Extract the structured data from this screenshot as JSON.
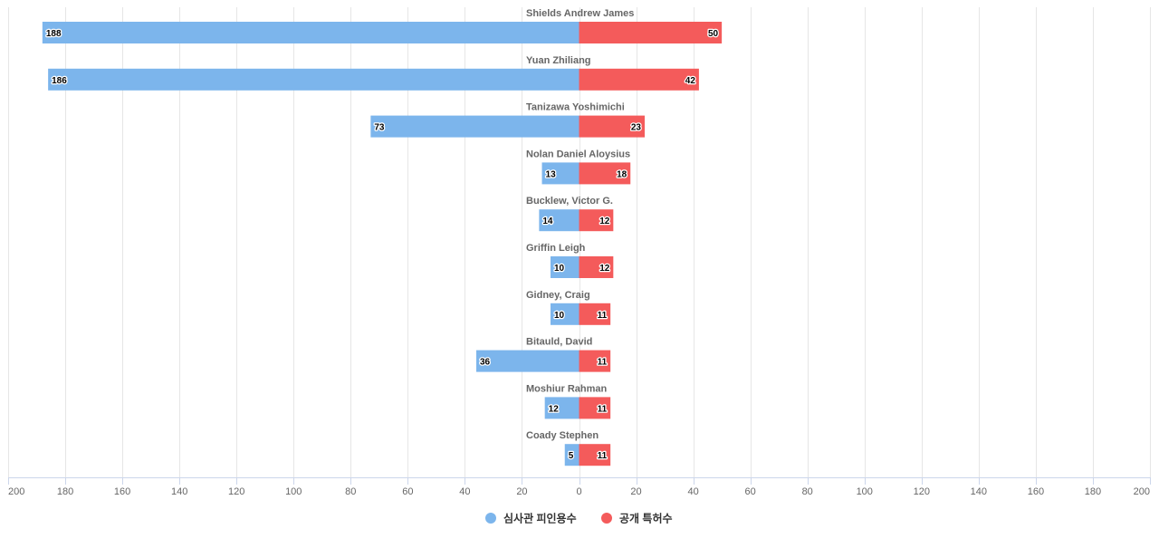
{
  "chart_data": {
    "type": "bar",
    "orientation": "horizontal-diverging",
    "categories": [
      "Shields Andrew James",
      "Yuan Zhiliang",
      "Tanizawa Yoshimichi",
      "Nolan Daniel Aloysius",
      "Bucklew, Victor G.",
      "Griffin Leigh",
      "Gidney, Craig",
      "Bitauld, David",
      "Moshiur Rahman",
      "Coady Stephen"
    ],
    "series": [
      {
        "name": "심사관 피인용수",
        "side": "left",
        "color": "#7cb5ec",
        "values": [
          188,
          186,
          73,
          13,
          14,
          10,
          10,
          36,
          12,
          5
        ]
      },
      {
        "name": "공개 특허수",
        "side": "right",
        "color": "#f45b5b",
        "values": [
          50,
          42,
          23,
          18,
          12,
          12,
          11,
          11,
          11,
          11
        ]
      }
    ],
    "xlim": [
      -200,
      200
    ],
    "ticks": [
      "200",
      "180",
      "160",
      "140",
      "120",
      "100",
      "80",
      "60",
      "40",
      "20",
      "0",
      "20",
      "40",
      "60",
      "80",
      "100",
      "120",
      "140",
      "160",
      "180",
      "200"
    ],
    "tick_values": [
      -200,
      -180,
      -160,
      -140,
      -120,
      -100,
      -80,
      -60,
      -40,
      -20,
      0,
      20,
      40,
      60,
      80,
      100,
      120,
      140,
      160,
      180,
      200
    ],
    "grid": true,
    "legend": "bottom-center",
    "title": "",
    "xlabel": "",
    "ylabel": ""
  }
}
